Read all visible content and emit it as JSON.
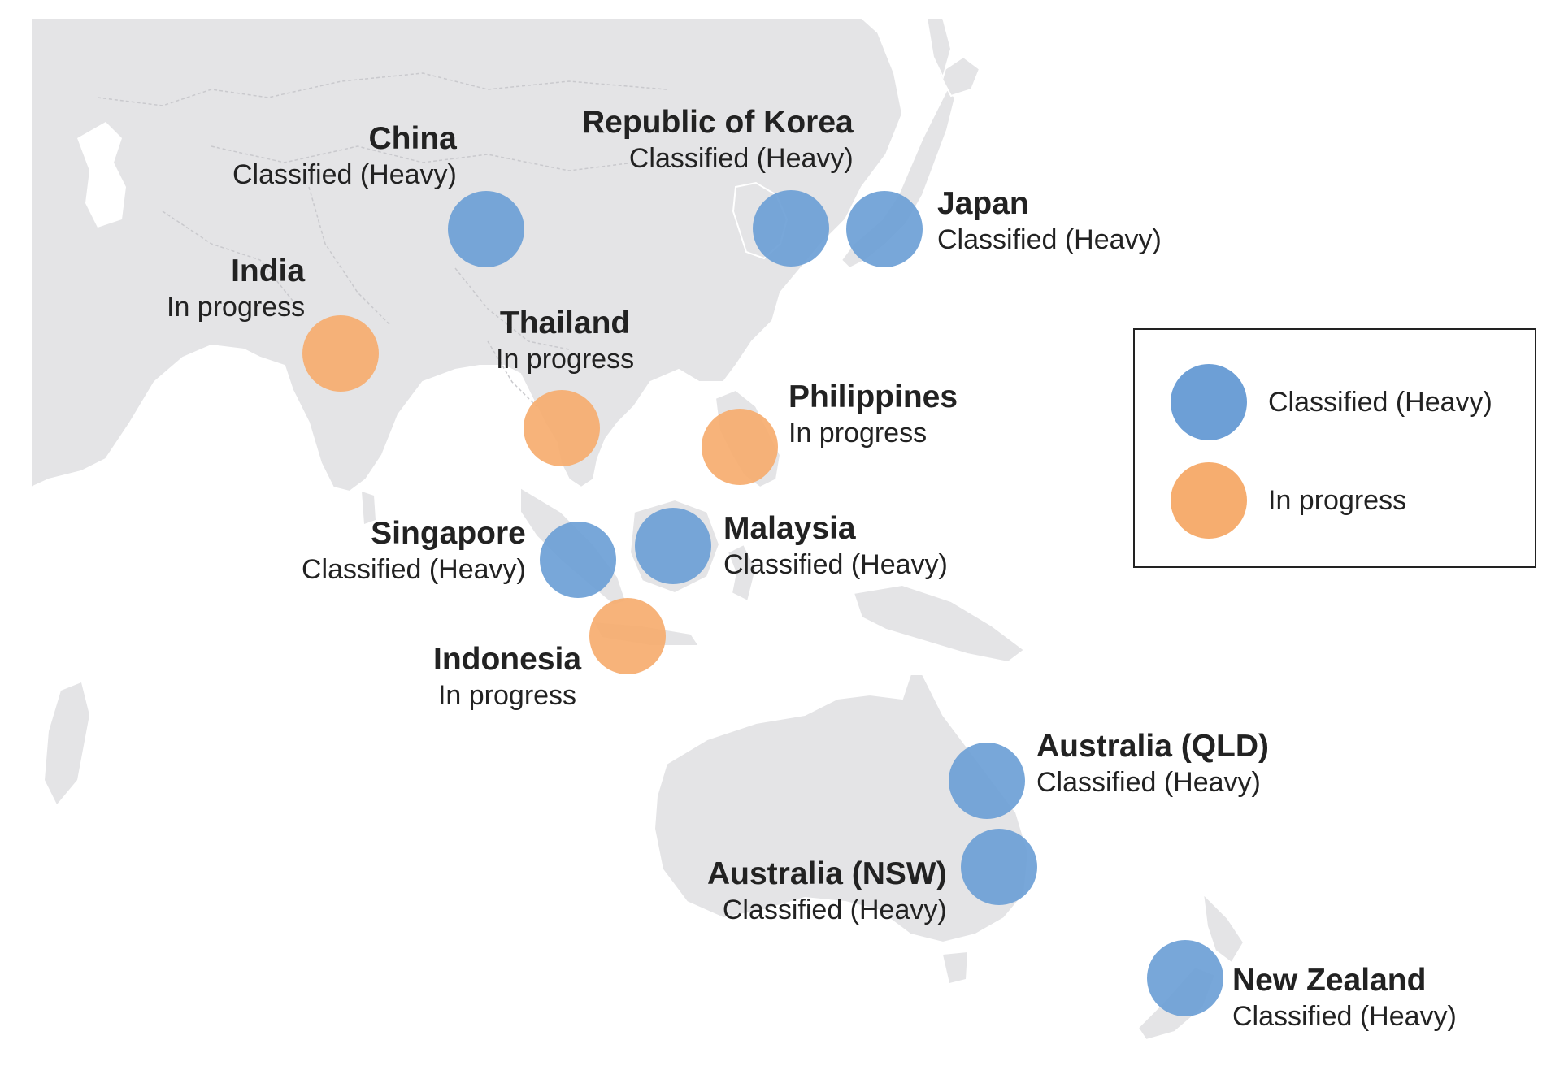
{
  "colors": {
    "classified_heavy": "#6d9fd6",
    "in_progress": "#f6ad6f",
    "land": "#e4e4e6"
  },
  "legend": {
    "items": [
      {
        "label": "Classified (Heavy)",
        "color": "#6d9fd6"
      },
      {
        "label": "In progress",
        "color": "#f6ad6f"
      }
    ]
  },
  "markers": [
    {
      "name": "China",
      "status": "Classified (Heavy)"
    },
    {
      "name": "Republic of Korea",
      "status": "Classified (Heavy)"
    },
    {
      "name": "Japan",
      "status": "Classified (Heavy)"
    },
    {
      "name": "India",
      "status": "In progress"
    },
    {
      "name": "Thailand",
      "status": "In progress"
    },
    {
      "name": "Philippines",
      "status": "In progress"
    },
    {
      "name": "Singapore",
      "status": "Classified (Heavy)"
    },
    {
      "name": "Malaysia",
      "status": "Classified (Heavy)"
    },
    {
      "name": "Indonesia",
      "status": "In progress"
    },
    {
      "name": "Australia (QLD)",
      "status": "Classified (Heavy)"
    },
    {
      "name": "Australia (NSW)",
      "status": "Classified (Heavy)"
    },
    {
      "name": "New Zealand",
      "status": "Classified (Heavy)"
    }
  ]
}
